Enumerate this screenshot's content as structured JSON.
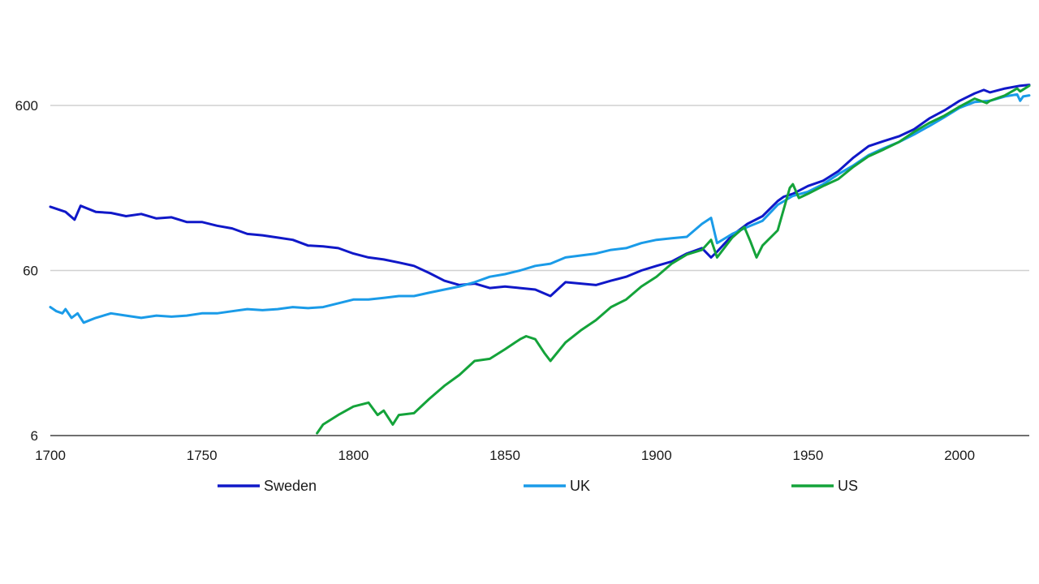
{
  "chart_data": {
    "type": "line",
    "title": "",
    "xlabel": "",
    "ylabel": "",
    "yscale": "log",
    "xlim": [
      1700,
      2023
    ],
    "ylim": [
      6,
      1000
    ],
    "grid": true,
    "legend_position": "bottom",
    "x_ticks": [
      1700,
      1750,
      1800,
      1850,
      1900,
      1950,
      2000
    ],
    "y_ticks": [
      {
        "value": 6,
        "label": "6"
      },
      {
        "value": 60,
        "label": "60"
      },
      {
        "value": 600,
        "label": "600"
      }
    ],
    "series": [
      {
        "name": "Sweden",
        "color": "#1018c8",
        "points": [
          [
            1700,
            146
          ],
          [
            1705,
            136
          ],
          [
            1708,
            122
          ],
          [
            1710,
            148
          ],
          [
            1715,
            136
          ],
          [
            1720,
            134
          ],
          [
            1725,
            128
          ],
          [
            1730,
            132
          ],
          [
            1735,
            124
          ],
          [
            1740,
            126
          ],
          [
            1745,
            118
          ],
          [
            1750,
            118
          ],
          [
            1755,
            112
          ],
          [
            1760,
            108
          ],
          [
            1765,
            100
          ],
          [
            1770,
            98
          ],
          [
            1775,
            95
          ],
          [
            1780,
            92
          ],
          [
            1785,
            85
          ],
          [
            1790,
            84
          ],
          [
            1795,
            82
          ],
          [
            1800,
            76
          ],
          [
            1805,
            72
          ],
          [
            1810,
            70
          ],
          [
            1815,
            67
          ],
          [
            1820,
            64
          ],
          [
            1825,
            58
          ],
          [
            1830,
            52
          ],
          [
            1835,
            49
          ],
          [
            1840,
            50
          ],
          [
            1845,
            47
          ],
          [
            1850,
            48
          ],
          [
            1855,
            47
          ],
          [
            1860,
            46
          ],
          [
            1865,
            42
          ],
          [
            1870,
            51
          ],
          [
            1875,
            50
          ],
          [
            1880,
            49
          ],
          [
            1885,
            52
          ],
          [
            1890,
            55
          ],
          [
            1895,
            60
          ],
          [
            1900,
            64
          ],
          [
            1905,
            68
          ],
          [
            1910,
            76
          ],
          [
            1915,
            82
          ],
          [
            1918,
            72
          ],
          [
            1920,
            78
          ],
          [
            1925,
            98
          ],
          [
            1930,
            115
          ],
          [
            1935,
            128
          ],
          [
            1940,
            158
          ],
          [
            1942,
            168
          ],
          [
            1945,
            175
          ],
          [
            1950,
            195
          ],
          [
            1955,
            210
          ],
          [
            1960,
            240
          ],
          [
            1965,
            290
          ],
          [
            1970,
            340
          ],
          [
            1975,
            365
          ],
          [
            1980,
            390
          ],
          [
            1985,
            430
          ],
          [
            1990,
            500
          ],
          [
            1995,
            560
          ],
          [
            2000,
            640
          ],
          [
            2005,
            710
          ],
          [
            2008,
            745
          ],
          [
            2010,
            720
          ],
          [
            2015,
            760
          ],
          [
            2020,
            790
          ],
          [
            2023,
            800
          ]
        ]
      },
      {
        "name": "UK",
        "color": "#1a9be8",
        "points": [
          [
            1700,
            36
          ],
          [
            1702,
            34
          ],
          [
            1704,
            33
          ],
          [
            1705,
            35
          ],
          [
            1707,
            31
          ],
          [
            1709,
            33
          ],
          [
            1711,
            29
          ],
          [
            1713,
            30
          ],
          [
            1715,
            31
          ],
          [
            1720,
            33
          ],
          [
            1725,
            32
          ],
          [
            1730,
            31
          ],
          [
            1735,
            32
          ],
          [
            1740,
            31.5
          ],
          [
            1745,
            32
          ],
          [
            1750,
            33
          ],
          [
            1755,
            33
          ],
          [
            1760,
            34
          ],
          [
            1765,
            35
          ],
          [
            1770,
            34.5
          ],
          [
            1775,
            35
          ],
          [
            1780,
            36
          ],
          [
            1785,
            35.5
          ],
          [
            1790,
            36
          ],
          [
            1795,
            38
          ],
          [
            1800,
            40
          ],
          [
            1805,
            40
          ],
          [
            1810,
            41
          ],
          [
            1815,
            42
          ],
          [
            1820,
            42
          ],
          [
            1825,
            44
          ],
          [
            1830,
            46
          ],
          [
            1835,
            48
          ],
          [
            1840,
            51
          ],
          [
            1845,
            55
          ],
          [
            1850,
            57
          ],
          [
            1855,
            60
          ],
          [
            1860,
            64
          ],
          [
            1865,
            66
          ],
          [
            1870,
            72
          ],
          [
            1875,
            74
          ],
          [
            1880,
            76
          ],
          [
            1885,
            80
          ],
          [
            1890,
            82
          ],
          [
            1895,
            88
          ],
          [
            1900,
            92
          ],
          [
            1905,
            94
          ],
          [
            1910,
            96
          ],
          [
            1915,
            115
          ],
          [
            1918,
            125
          ],
          [
            1920,
            88
          ],
          [
            1925,
            100
          ],
          [
            1930,
            110
          ],
          [
            1935,
            120
          ],
          [
            1940,
            150
          ],
          [
            1945,
            170
          ],
          [
            1950,
            180
          ],
          [
            1955,
            200
          ],
          [
            1960,
            230
          ],
          [
            1965,
            260
          ],
          [
            1970,
            300
          ],
          [
            1975,
            330
          ],
          [
            1980,
            360
          ],
          [
            1985,
            400
          ],
          [
            1990,
            450
          ],
          [
            1995,
            510
          ],
          [
            2000,
            580
          ],
          [
            2005,
            630
          ],
          [
            2010,
            640
          ],
          [
            2015,
            680
          ],
          [
            2019,
            700
          ],
          [
            2020,
            640
          ],
          [
            2021,
            680
          ],
          [
            2023,
            690
          ]
        ]
      },
      {
        "name": "US",
        "color": "#14a33a",
        "points": [
          [
            1788,
            6.2
          ],
          [
            1790,
            7
          ],
          [
            1795,
            8
          ],
          [
            1800,
            9
          ],
          [
            1805,
            9.5
          ],
          [
            1808,
            8
          ],
          [
            1810,
            8.5
          ],
          [
            1813,
            7
          ],
          [
            1815,
            8
          ],
          [
            1820,
            8.2
          ],
          [
            1825,
            10
          ],
          [
            1830,
            12
          ],
          [
            1835,
            14
          ],
          [
            1840,
            17
          ],
          [
            1845,
            17.5
          ],
          [
            1850,
            20
          ],
          [
            1855,
            23
          ],
          [
            1857,
            24
          ],
          [
            1860,
            23
          ],
          [
            1863,
            19
          ],
          [
            1865,
            17
          ],
          [
            1870,
            22
          ],
          [
            1875,
            26
          ],
          [
            1880,
            30
          ],
          [
            1885,
            36
          ],
          [
            1890,
            40
          ],
          [
            1895,
            48
          ],
          [
            1900,
            55
          ],
          [
            1905,
            66
          ],
          [
            1910,
            75
          ],
          [
            1915,
            80
          ],
          [
            1918,
            92
          ],
          [
            1920,
            72
          ],
          [
            1925,
            95
          ],
          [
            1929,
            110
          ],
          [
            1931,
            90
          ],
          [
            1933,
            72
          ],
          [
            1935,
            85
          ],
          [
            1940,
            105
          ],
          [
            1944,
            190
          ],
          [
            1945,
            200
          ],
          [
            1947,
            165
          ],
          [
            1950,
            175
          ],
          [
            1955,
            195
          ],
          [
            1960,
            215
          ],
          [
            1965,
            255
          ],
          [
            1970,
            295
          ],
          [
            1975,
            325
          ],
          [
            1980,
            360
          ],
          [
            1985,
            415
          ],
          [
            1990,
            470
          ],
          [
            1995,
            520
          ],
          [
            2000,
            590
          ],
          [
            2005,
            660
          ],
          [
            2009,
            620
          ],
          [
            2010,
            640
          ],
          [
            2015,
            690
          ],
          [
            2019,
            760
          ],
          [
            2020,
            730
          ],
          [
            2023,
            790
          ]
        ]
      }
    ]
  }
}
